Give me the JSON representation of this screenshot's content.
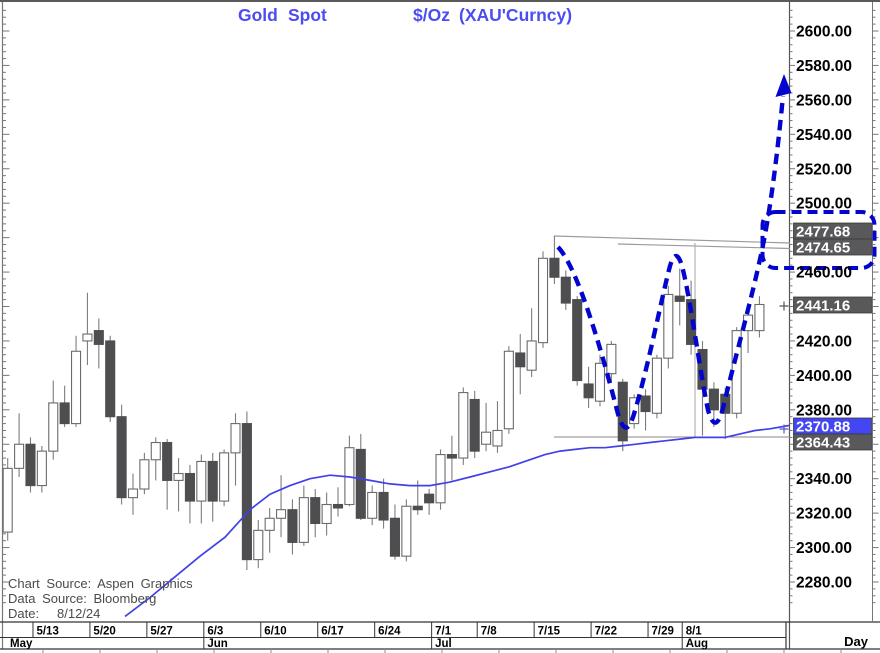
{
  "title": {
    "full": "Gold Spot $/Oz (XAU'Curncy)",
    "parts": [
      {
        "t": "Gold",
        "x": 238
      },
      {
        "t": "Spot",
        "x": 288
      },
      {
        "t": "$/Oz",
        "x": 413
      },
      {
        "t": "(XAU'Curncy)",
        "x": 459
      }
    ],
    "color": "#4c4cf0"
  },
  "colors": {
    "annotation_blue": "#0404cf",
    "ma_line": "#4141e8",
    "candle_down_fill": "#4e4e50",
    "candle_up_fill": "#ffffff",
    "candle_border": "#6b6b6d",
    "wick": "#7d7d80",
    "trendline_gray": "#9b9b9b",
    "highlight_gray_bg": "#59595c",
    "highlight_blue_bg": "#4346f2",
    "axis_text": "#000000",
    "footer_text": "#4b4b4b"
  },
  "y_axis": {
    "tick_labels": [
      "2600.00",
      "2580.00",
      "2560.00",
      "2540.00",
      "2520.00",
      "2500.00",
      "2460.00",
      "2420.00",
      "2400.00",
      "2380.00",
      "2340.00",
      "2320.00",
      "2300.00",
      "2280.00"
    ],
    "tick_values": [
      2600,
      2580,
      2560,
      2540,
      2520,
      2500,
      2460,
      2420,
      2400,
      2380,
      2340,
      2320,
      2300,
      2280
    ],
    "price_flags": [
      {
        "label": "2477.68",
        "value": 2477.68,
        "style": "gray",
        "boxed": true
      },
      {
        "label": "2474.65",
        "value": 2474.65,
        "style": "gray",
        "boxed": true
      },
      {
        "label": "2441.16",
        "value": 2441.16,
        "style": "gray",
        "boxed": false
      },
      {
        "label": "2370.88",
        "value": 2370.88,
        "style": "blue",
        "boxed": false
      },
      {
        "label": "2364.43",
        "value": 2364.43,
        "style": "gray",
        "boxed": false
      }
    ]
  },
  "x_axis": {
    "week_labels": [
      {
        "t": "5/13",
        "i": 2
      },
      {
        "t": "5/20",
        "i": 7
      },
      {
        "t": "5/27",
        "i": 12
      },
      {
        "t": "6/3",
        "i": 17
      },
      {
        "t": "6/10",
        "i": 22
      },
      {
        "t": "6/17",
        "i": 27
      },
      {
        "t": "6/24",
        "i": 32
      },
      {
        "t": "7/1",
        "i": 37
      },
      {
        "t": "7/8",
        "i": 41
      },
      {
        "t": "7/15",
        "i": 46
      },
      {
        "t": "7/22",
        "i": 51
      },
      {
        "t": "7/29",
        "i": 56
      },
      {
        "t": "8/1",
        "i": 59
      }
    ],
    "month_labels": [
      {
        "t": "May",
        "i": null,
        "x": 10
      },
      {
        "t": "Jun",
        "i": 17
      },
      {
        "t": "Jul",
        "i": 37
      },
      {
        "t": "Aug",
        "i": 59
      }
    ],
    "day_label": "Day"
  },
  "footer": {
    "chart_source": "Chart Source: Aspen Graphics",
    "data_source": "Data Source: Bloomberg",
    "date_label": "Date:",
    "date_value": "8/12/24"
  },
  "chart_data": {
    "type": "candlestick",
    "instrument": "Gold Spot $/Oz (XAU Currency)",
    "periodicity": "Day",
    "ylim": [
      2280,
      2600
    ],
    "y_tick_step": 20,
    "grid": false,
    "columns": [
      "date",
      "open",
      "high",
      "low",
      "close"
    ],
    "candles": [
      [
        "5/9",
        2309,
        2352,
        2304,
        2346
      ],
      [
        "5/10",
        2346,
        2378,
        2341,
        2360
      ],
      [
        "5/13",
        2360,
        2364,
        2332,
        2336
      ],
      [
        "5/14",
        2336,
        2359,
        2332,
        2356
      ],
      [
        "5/15",
        2356,
        2397,
        2351,
        2384
      ],
      [
        "5/16",
        2384,
        2394,
        2370,
        2372
      ],
      [
        "5/17",
        2372,
        2423,
        2370,
        2414
      ],
      [
        "5/20",
        2420,
        2448,
        2406,
        2424
      ],
      [
        "5/21",
        2426,
        2433,
        2404,
        2418
      ],
      [
        "5/22",
        2420,
        2423,
        2373,
        2376
      ],
      [
        "5/23",
        2376,
        2383,
        2325,
        2329
      ],
      [
        "5/24",
        2329,
        2343,
        2319,
        2334
      ],
      [
        "5/27",
        2334,
        2355,
        2331,
        2351
      ],
      [
        "5/28",
        2351,
        2364,
        2339,
        2361
      ],
      [
        "5/29",
        2361,
        2363,
        2322,
        2339
      ],
      [
        "5/30",
        2339,
        2352,
        2321,
        2343
      ],
      [
        "5/31",
        2343,
        2348,
        2314,
        2327
      ],
      [
        "6/3",
        2327,
        2354,
        2314,
        2350
      ],
      [
        "6/4",
        2350,
        2355,
        2315,
        2327
      ],
      [
        "6/5",
        2327,
        2357,
        2324,
        2355
      ],
      [
        "6/6",
        2355,
        2378,
        2336,
        2372
      ],
      [
        "6/7",
        2372,
        2379,
        2287,
        2293
      ],
      [
        "6/10",
        2293,
        2316,
        2288,
        2310
      ],
      [
        "6/11",
        2310,
        2323,
        2297,
        2317
      ],
      [
        "6/12",
        2317,
        2342,
        2306,
        2322
      ],
      [
        "6/13",
        2322,
        2328,
        2296,
        2303
      ],
      [
        "6/14",
        2303,
        2336,
        2301,
        2329
      ],
      [
        "6/17",
        2329,
        2334,
        2306,
        2314
      ],
      [
        "6/18",
        2314,
        2332,
        2307,
        2325
      ],
      [
        "6/19",
        2325,
        2335,
        2318,
        2323
      ],
      [
        "6/20",
        2325,
        2365,
        2324,
        2358
      ],
      [
        "6/21",
        2357,
        2366,
        2316,
        2317
      ],
      [
        "6/24",
        2317,
        2336,
        2313,
        2332
      ],
      [
        "6/25",
        2332,
        2340,
        2311,
        2316
      ],
      [
        "6/26",
        2317,
        2325,
        2293,
        2295
      ],
      [
        "6/27",
        2295,
        2328,
        2292,
        2324
      ],
      [
        "6/28",
        2324,
        2339,
        2319,
        2322
      ],
      [
        "7/1",
        2331,
        2334,
        2319,
        2326
      ],
      [
        "7/2",
        2326,
        2357,
        2322,
        2354
      ],
      [
        "7/3",
        2354,
        2365,
        2339,
        2352
      ],
      [
        "7/5",
        2352,
        2393,
        2348,
        2390
      ],
      [
        "7/8",
        2386,
        2391,
        2352,
        2356
      ],
      [
        "7/9",
        2360,
        2384,
        2356,
        2367
      ],
      [
        "7/10",
        2359,
        2385,
        2355,
        2368
      ],
      [
        "7/11",
        2369,
        2417,
        2366,
        2414
      ],
      [
        "7/12",
        2413,
        2424,
        2389,
        2405
      ],
      [
        "7/15",
        2403,
        2439,
        2399,
        2420
      ],
      [
        "7/16",
        2419,
        2472,
        2416,
        2468
      ],
      [
        "7/17",
        2468,
        2481,
        2453,
        2457
      ],
      [
        "7/18",
        2457,
        2461,
        2438,
        2442
      ],
      [
        "7/19",
        2444,
        2446,
        2394,
        2397
      ],
      [
        "7/22",
        2395,
        2405,
        2381,
        2387
      ],
      [
        "7/23",
        2385,
        2412,
        2382,
        2407
      ],
      [
        "7/24",
        2401,
        2420,
        2396,
        2418
      ],
      [
        "7/25",
        2396,
        2398,
        2356,
        2362
      ],
      [
        "7/26",
        2372,
        2389,
        2369,
        2387
      ],
      [
        "7/29",
        2388,
        2392,
        2368,
        2379
      ],
      [
        "7/30",
        2378,
        2412,
        2375,
        2410
      ],
      [
        "7/31",
        2410,
        2452,
        2404,
        2447
      ],
      [
        "8/1",
        2446,
        2462,
        2429,
        2443
      ],
      [
        "8/2",
        2444,
        2455,
        2412,
        2418
      ],
      [
        "8/5",
        2415,
        2420,
        2365,
        2392
      ],
      [
        "8/6",
        2392,
        2396,
        2370,
        2380
      ],
      [
        "8/7",
        2389,
        2393,
        2363,
        2378
      ],
      [
        "8/8",
        2378,
        2428,
        2375,
        2426
      ],
      [
        "8/9",
        2426,
        2442,
        2413,
        2435
      ],
      [
        "8/12",
        2426,
        2446,
        2422,
        2441.16
      ]
    ],
    "moving_average": {
      "name": "moving average (blue)",
      "last_value": 2370.88,
      "points_x_price": [
        [
          125,
          2260
        ],
        [
          150,
          2271
        ],
        [
          175,
          2283
        ],
        [
          200,
          2295
        ],
        [
          225,
          2306
        ],
        [
          250,
          2322
        ],
        [
          270,
          2331
        ],
        [
          290,
          2336
        ],
        [
          310,
          2340
        ],
        [
          330,
          2342
        ],
        [
          350,
          2341
        ],
        [
          370,
          2339
        ],
        [
          390,
          2337
        ],
        [
          410,
          2336
        ],
        [
          430,
          2336
        ],
        [
          450,
          2338
        ],
        [
          470,
          2341
        ],
        [
          490,
          2344
        ],
        [
          510,
          2347
        ],
        [
          530,
          2351
        ],
        [
          545,
          2354
        ],
        [
          560,
          2356
        ],
        [
          575,
          2357
        ],
        [
          590,
          2358
        ],
        [
          605,
          2358
        ],
        [
          620,
          2359
        ],
        [
          635,
          2360
        ],
        [
          650,
          2361
        ],
        [
          665,
          2362
        ],
        [
          680,
          2363
        ],
        [
          695,
          2364
        ],
        [
          710,
          2364
        ],
        [
          725,
          2364
        ],
        [
          740,
          2366
        ],
        [
          755,
          2368
        ],
        [
          770,
          2369
        ],
        [
          789,
          2370.9
        ]
      ]
    },
    "annotations": {
      "pattern": "double-bottom (W) dashed sketch with breakout arrow projecting to ~2580",
      "resistance_levels": [
        2477.68,
        2474.65
      ],
      "support_level": 2364.43,
      "last_price": 2441.16,
      "w_troughs_dates": [
        "7/25",
        "8/7"
      ],
      "w_peak_date": "8/1"
    }
  }
}
